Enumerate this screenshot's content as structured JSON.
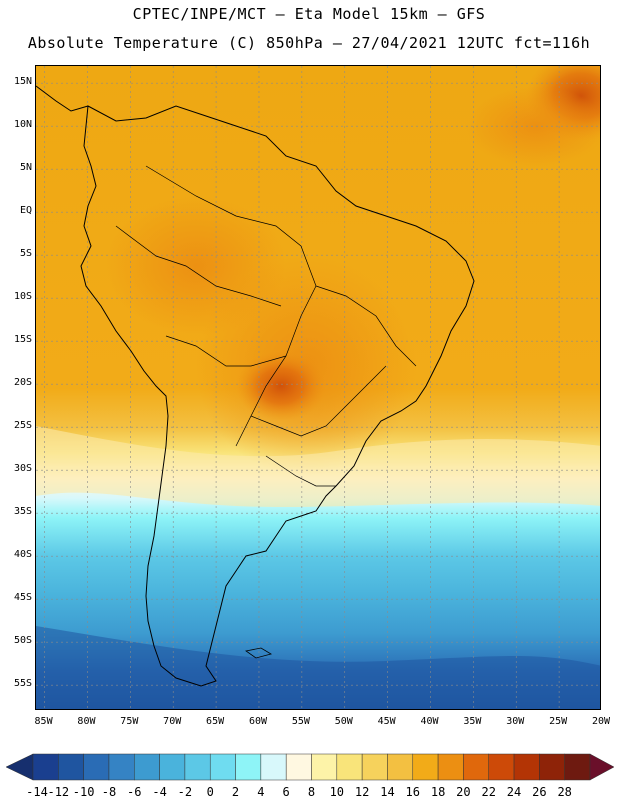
{
  "title": {
    "line1": "CPTEC/INPE/MCT –  Eta Model 15km – GFS",
    "line2": "Absolute Temperature (C) 850hPa – 27/04/2021 12UTC fct=116h"
  },
  "map": {
    "lat_labels": [
      "15N",
      "10N",
      "5N",
      "EQ",
      "5S",
      "10S",
      "15S",
      "20S",
      "25S",
      "30S",
      "35S",
      "40S",
      "45S",
      "50S",
      "55S"
    ],
    "lon_labels": [
      "85W",
      "80W",
      "75W",
      "70W",
      "65W",
      "60W",
      "55W",
      "50W",
      "45W",
      "40W",
      "35W",
      "30W",
      "25W",
      "20W"
    ],
    "lat_range": [
      -58,
      17
    ],
    "lon_range": [
      -86,
      -20
    ]
  },
  "colorbar": {
    "ticks": [
      "-14",
      "-12",
      "-10",
      "-8",
      "-6",
      "-4",
      "-2",
      "0",
      "2",
      "4",
      "6",
      "8",
      "10",
      "12",
      "14",
      "16",
      "18",
      "20",
      "22",
      "24",
      "26",
      "28"
    ],
    "colors": [
      "#1a3f8f",
      "#1f55a0",
      "#2a6cb5",
      "#3583c4",
      "#3d9bd0",
      "#4ab3dc",
      "#5cc8e6",
      "#6fdcf0",
      "#8ef4f7",
      "#d8f8fb",
      "#fff8e1",
      "#fdf3a8",
      "#f9e47a",
      "#f6d25c",
      "#f3c041",
      "#f2ab18",
      "#ec8f12",
      "#e0680c",
      "#cd4a08",
      "#b33405",
      "#8e2308",
      "#6e1a10"
    ],
    "low_arrow": "#162f6e",
    "high_arrow": "#6a0f2a"
  }
}
